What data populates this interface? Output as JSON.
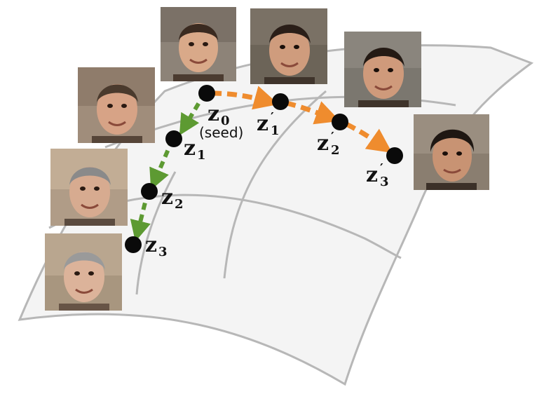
{
  "diagram": {
    "colors": {
      "surface_fill": "#f3f3f3",
      "surface_stroke": "#b3b3b3",
      "point": "#0a0a0a",
      "arrow_green": "#5d9a32",
      "arrow_orange": "#ef8c2e"
    },
    "labels": {
      "z0_base": "z",
      "z0_sub": "0",
      "seed": "(seed)",
      "z1_base": "z",
      "z1_sub": "1",
      "z2_base": "z",
      "z2_sub": "2",
      "z3_base": "z",
      "z3_sub": "3",
      "z1p_base": "z",
      "z1p_sub": "1",
      "z2p_base": "z",
      "z2p_sub": "2",
      "z3p_base": "z",
      "z3p_sub": "3",
      "prime": "′"
    },
    "faces": [
      {
        "name": "face-seed",
        "hair": "#3a2a20",
        "skin": "#d9a989",
        "bg": "#8d8378"
      },
      {
        "name": "face-z1",
        "hair": "#4a3a2d",
        "skin": "#d7a386",
        "bg": "#a08d7b"
      },
      {
        "name": "face-z2",
        "hair": "#8a8a8a",
        "skin": "#d7ab90",
        "bg": "#b09c87"
      },
      {
        "name": "face-z3",
        "hair": "#9a9a9a",
        "skin": "#dcb39a",
        "bg": "#a8967f"
      },
      {
        "name": "face-z1p",
        "hair": "#2a1e18",
        "skin": "#cf9c7d",
        "bg": "#6c6458"
      },
      {
        "name": "face-z2p",
        "hair": "#241a14",
        "skin": "#cf9a7b",
        "bg": "#7b776f"
      },
      {
        "name": "face-z3p",
        "hair": "#1f1712",
        "skin": "#c89373",
        "bg": "#8a7e70"
      }
    ]
  }
}
